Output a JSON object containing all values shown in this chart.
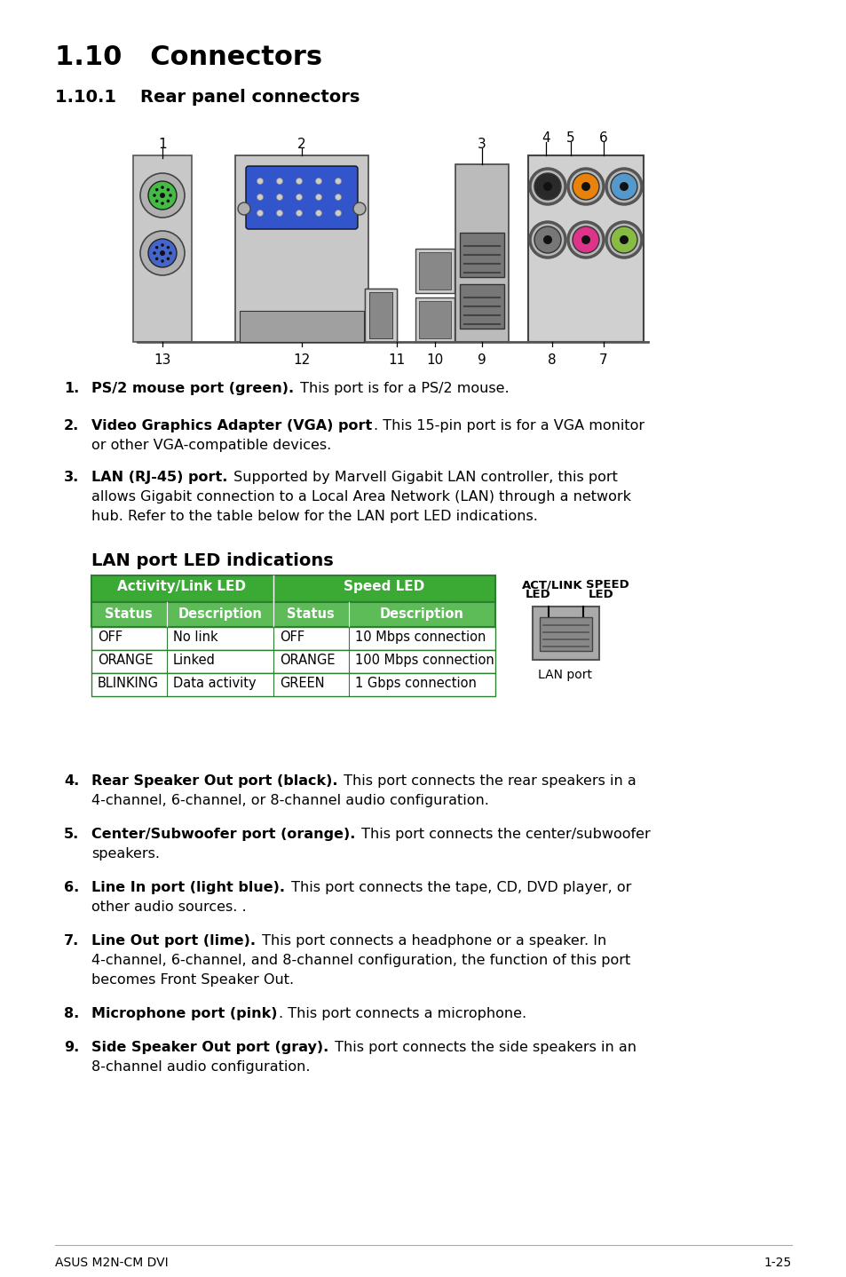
{
  "title_main": "1.10   Connectors",
  "title_sub": "1.10.1    Rear panel connectors",
  "section_heading": "LAN port LED indications",
  "footer_left": "ASUS M2N-CM DVI",
  "footer_right": "1-25",
  "table_header_color": "#3aaa35",
  "table_subheader_color": "#5dbb58",
  "table_border_color": "#2e7d32",
  "table_rows": [
    [
      "OFF",
      "No link",
      "OFF",
      "10 Mbps connection"
    ],
    [
      "ORANGE",
      "Linked",
      "ORANGE",
      "100 Mbps connection"
    ],
    [
      "BLINKING",
      "Data activity",
      "GREEN",
      "1 Gbps connection"
    ]
  ],
  "items": [
    {
      "num": "1.",
      "bold": "PS/2 mouse port (green).",
      "rest": " This port is for a PS/2 mouse.",
      "extra_lines": []
    },
    {
      "num": "2.",
      "bold": "Video Graphics Adapter (VGA) port",
      "rest": ". This 15-pin port is for a VGA monitor",
      "extra_lines": [
        "or other VGA-compatible devices."
      ]
    },
    {
      "num": "3.",
      "bold": "LAN (RJ-45) port.",
      "rest": " Supported by Marvell Gigabit LAN controller, this port",
      "extra_lines": [
        "allows Gigabit connection to a Local Area Network (LAN) through a network",
        "hub. Refer to the table below for the LAN port LED indications."
      ]
    },
    {
      "num": "4.",
      "bold": "Rear Speaker Out port (black).",
      "rest": " This port connects the rear speakers in a",
      "extra_lines": [
        "4-channel, 6-channel, or 8-channel audio configuration."
      ]
    },
    {
      "num": "5.",
      "bold": "Center/Subwoofer port (orange).",
      "rest": " This port connects the center/subwoofer",
      "extra_lines": [
        "speakers."
      ]
    },
    {
      "num": "6.",
      "bold": "Line In port (light blue).",
      "rest": " This port connects the tape, CD, DVD player, or",
      "extra_lines": [
        "other audio sources. ."
      ]
    },
    {
      "num": "7.",
      "bold": "Line Out port (lime).",
      "rest": " This port connects a headphone or a speaker. In",
      "extra_lines": [
        "4-channel, 6-channel, and 8-channel configuration, the function of this port",
        "becomes Front Speaker Out."
      ]
    },
    {
      "num": "8.",
      "bold": "Microphone port (pink)",
      "rest": ". This port connects a microphone.",
      "extra_lines": []
    },
    {
      "num": "9.",
      "bold": "Side Speaker Out port (gray).",
      "rest": " This port connects the side speakers in an",
      "extra_lines": [
        "8-channel audio configuration."
      ]
    }
  ]
}
